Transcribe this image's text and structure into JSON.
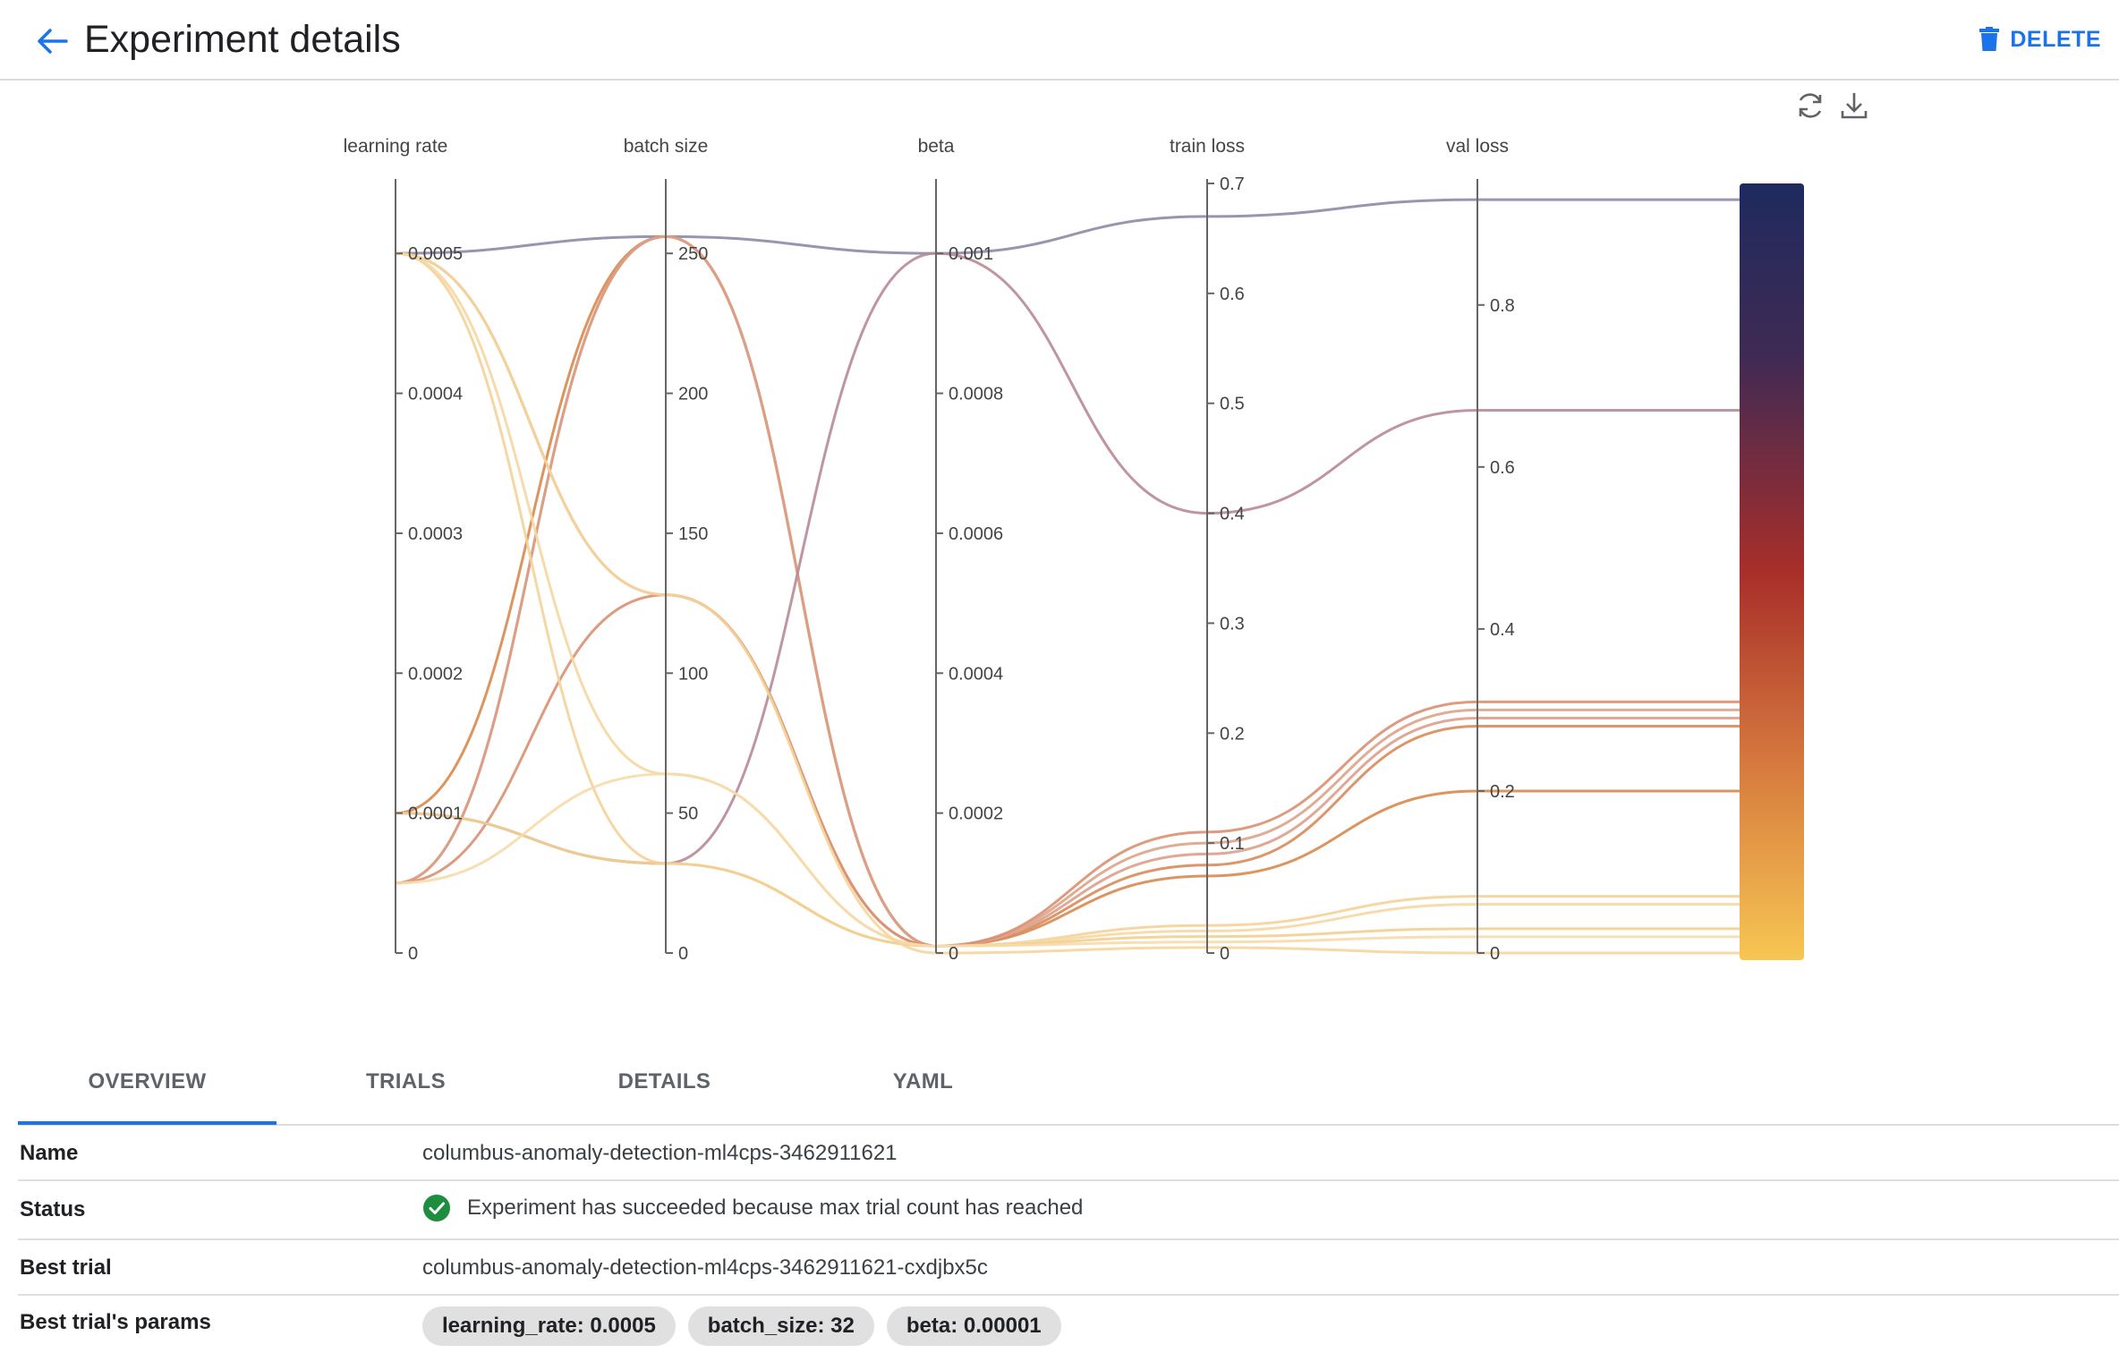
{
  "header": {
    "title": "Experiment details",
    "delete_label": "DELETE"
  },
  "toolbar": {
    "refresh_icon": "refresh-icon",
    "download_icon": "download-icon"
  },
  "chart_data": {
    "type": "parallel-coordinates",
    "axes": [
      {
        "label": "learning rate",
        "range": [
          0,
          0.00055
        ],
        "ticks": [
          "0",
          "0.0001",
          "0.0002",
          "0.0003",
          "0.0004",
          "0.0005"
        ]
      },
      {
        "label": "batch size",
        "range": [
          0,
          275
        ],
        "ticks": [
          "0",
          "50",
          "100",
          "150",
          "200",
          "250"
        ]
      },
      {
        "label": "beta",
        "range": [
          0,
          0.0011
        ],
        "ticks": [
          "0",
          "0.0002",
          "0.0004",
          "0.0006",
          "0.0008",
          "0.001"
        ]
      },
      {
        "label": "train loss",
        "range": [
          0,
          0.7
        ],
        "ticks": [
          "0",
          "0.1",
          "0.2",
          "0.3",
          "0.4",
          "0.5",
          "0.6",
          "0.7"
        ]
      },
      {
        "label": "val loss",
        "range": [
          0,
          0.95
        ],
        "ticks": [
          "0",
          "0.2",
          "0.4",
          "0.6",
          "0.8"
        ]
      }
    ],
    "colorscale": [
      "#f7c653",
      "#d67a3e",
      "#a82e2a",
      "#3f2a54",
      "#1e2a5e"
    ],
    "series": [
      {
        "values": [
          0.0005,
          256,
          0.001,
          0.67,
          0.93
        ],
        "color": "#8f8aa6"
      },
      {
        "values": [
          0.0001,
          256,
          1e-05,
          0.07,
          0.2
        ],
        "color": "#d8894e"
      },
      {
        "values": [
          5e-05,
          256,
          1e-05,
          0.08,
          0.28
        ],
        "color": "#d98a5a"
      },
      {
        "values": [
          5e-05,
          256,
          1e-05,
          0.09,
          0.29
        ],
        "color": "#dba08a"
      },
      {
        "values": [
          0.0005,
          128,
          1e-05,
          0.1,
          0.3
        ],
        "color": "#dca48a"
      },
      {
        "values": [
          5e-05,
          128,
          1e-05,
          0.11,
          0.31
        ],
        "color": "#d99072"
      },
      {
        "values": [
          0.0001,
          32,
          0.001,
          0.4,
          0.67
        ],
        "color": "#b88b96"
      },
      {
        "values": [
          0.0005,
          32,
          1e-05,
          0.025,
          0.07
        ],
        "color": "#f4d39a"
      },
      {
        "values": [
          0.0005,
          64,
          1e-05,
          0.02,
          0.06
        ],
        "color": "#f5d8a2"
      },
      {
        "values": [
          0.0001,
          32,
          1e-05,
          0.015,
          0.03
        ],
        "color": "#f3cf90"
      },
      {
        "values": [
          5e-05,
          64,
          1e-05,
          0.01,
          0.02
        ],
        "color": "#f6dcab"
      },
      {
        "values": [
          0.0005,
          128,
          0.0,
          0.005,
          0.0
        ],
        "color": "#f5d59a"
      }
    ]
  },
  "tabs": [
    {
      "label": "OVERVIEW"
    },
    {
      "label": "TRIALS"
    },
    {
      "label": "DETAILS"
    },
    {
      "label": "YAML"
    }
  ],
  "overview": {
    "name_label": "Name",
    "name_value": "columbus-anomaly-detection-ml4cps-3462911621",
    "status_label": "Status",
    "status_value": "Experiment has succeeded because max trial count has reached",
    "best_trial_label": "Best trial",
    "best_trial_value": "columbus-anomaly-detection-ml4cps-3462911621-cxdjbx5c",
    "best_params_label": "Best trial's params",
    "params": [
      "learning_rate: 0.0005",
      "batch_size: 32",
      "beta: 0.00001"
    ]
  },
  "colors": {
    "accent": "#1a73e8",
    "success": "#1e8e3e"
  }
}
